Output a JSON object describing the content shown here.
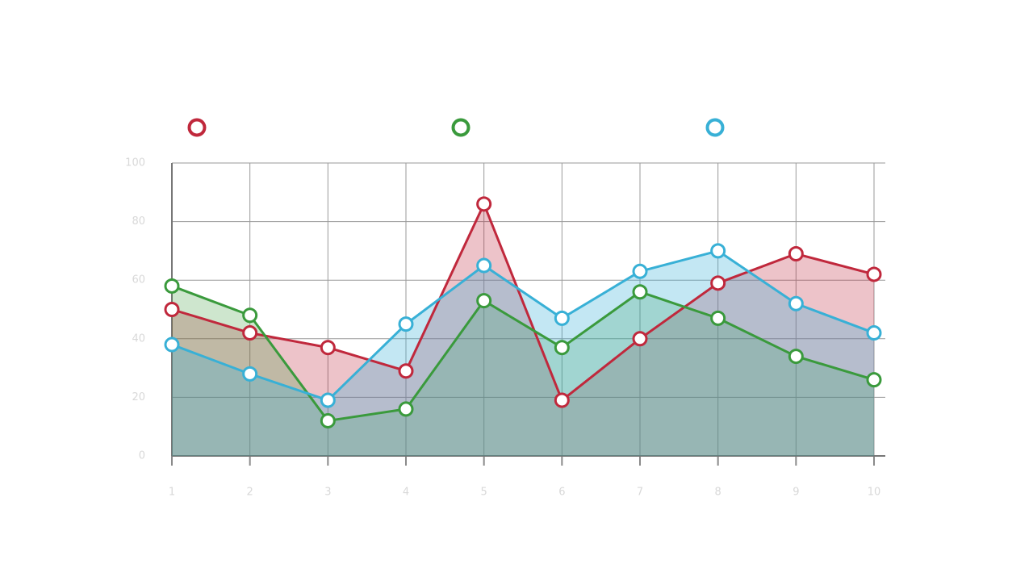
{
  "chart_data": {
    "type": "area",
    "x": [
      1,
      2,
      3,
      4,
      5,
      6,
      7,
      8,
      9,
      10
    ],
    "series": [
      {
        "color": "#c0283c",
        "values": [
          50,
          42,
          37,
          29,
          86,
          19,
          40,
          59,
          69,
          62
        ]
      },
      {
        "color": "#3a9a3c",
        "values": [
          58,
          48,
          12,
          16,
          53,
          37,
          56,
          47,
          34,
          26
        ]
      },
      {
        "color": "#38b0d6",
        "values": [
          38,
          28,
          19,
          45,
          65,
          47,
          63,
          70,
          52,
          42
        ]
      }
    ],
    "xlim": [
      1,
      10
    ],
    "xticks": [
      1,
      2,
      3,
      4,
      5,
      6,
      7,
      8,
      9,
      10
    ],
    "ylim": [
      0,
      100
    ],
    "yticks": [
      0,
      20,
      40,
      60,
      80,
      100
    ],
    "grid": true
  }
}
